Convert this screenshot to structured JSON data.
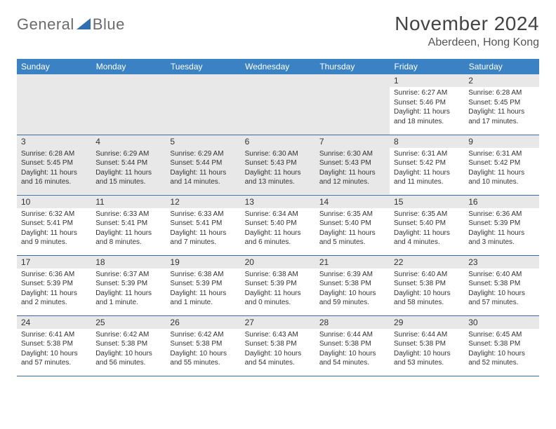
{
  "logo": {
    "part1": "General",
    "part2": "Blue",
    "primary_color": "#2f6fb0",
    "text_color": "#6b6b6b"
  },
  "title": "November 2024",
  "location": "Aberdeen, Hong Kong",
  "colors": {
    "header_bg": "#3b82c4",
    "header_text": "#ffffff",
    "daynum_bg": "#e8e8e8",
    "body_text": "#333333",
    "row_border": "#3b6a9a"
  },
  "day_headers": [
    "Sunday",
    "Monday",
    "Tuesday",
    "Wednesday",
    "Thursday",
    "Friday",
    "Saturday"
  ],
  "weeks": [
    [
      null,
      null,
      null,
      null,
      null,
      {
        "n": "1",
        "sunrise": "Sunrise: 6:27 AM",
        "sunset": "Sunset: 5:46 PM",
        "day1": "Daylight: 11 hours",
        "day2": "and 18 minutes."
      },
      {
        "n": "2",
        "sunrise": "Sunrise: 6:28 AM",
        "sunset": "Sunset: 5:45 PM",
        "day1": "Daylight: 11 hours",
        "day2": "and 17 minutes."
      }
    ],
    [
      {
        "n": "3",
        "sunrise": "Sunrise: 6:28 AM",
        "sunset": "Sunset: 5:45 PM",
        "day1": "Daylight: 11 hours",
        "day2": "and 16 minutes."
      },
      {
        "n": "4",
        "sunrise": "Sunrise: 6:29 AM",
        "sunset": "Sunset: 5:44 PM",
        "day1": "Daylight: 11 hours",
        "day2": "and 15 minutes."
      },
      {
        "n": "5",
        "sunrise": "Sunrise: 6:29 AM",
        "sunset": "Sunset: 5:44 PM",
        "day1": "Daylight: 11 hours",
        "day2": "and 14 minutes."
      },
      {
        "n": "6",
        "sunrise": "Sunrise: 6:30 AM",
        "sunset": "Sunset: 5:43 PM",
        "day1": "Daylight: 11 hours",
        "day2": "and 13 minutes."
      },
      {
        "n": "7",
        "sunrise": "Sunrise: 6:30 AM",
        "sunset": "Sunset: 5:43 PM",
        "day1": "Daylight: 11 hours",
        "day2": "and 12 minutes."
      },
      {
        "n": "8",
        "sunrise": "Sunrise: 6:31 AM",
        "sunset": "Sunset: 5:42 PM",
        "day1": "Daylight: 11 hours",
        "day2": "and 11 minutes."
      },
      {
        "n": "9",
        "sunrise": "Sunrise: 6:31 AM",
        "sunset": "Sunset: 5:42 PM",
        "day1": "Daylight: 11 hours",
        "day2": "and 10 minutes."
      }
    ],
    [
      {
        "n": "10",
        "sunrise": "Sunrise: 6:32 AM",
        "sunset": "Sunset: 5:41 PM",
        "day1": "Daylight: 11 hours",
        "day2": "and 9 minutes."
      },
      {
        "n": "11",
        "sunrise": "Sunrise: 6:33 AM",
        "sunset": "Sunset: 5:41 PM",
        "day1": "Daylight: 11 hours",
        "day2": "and 8 minutes."
      },
      {
        "n": "12",
        "sunrise": "Sunrise: 6:33 AM",
        "sunset": "Sunset: 5:41 PM",
        "day1": "Daylight: 11 hours",
        "day2": "and 7 minutes."
      },
      {
        "n": "13",
        "sunrise": "Sunrise: 6:34 AM",
        "sunset": "Sunset: 5:40 PM",
        "day1": "Daylight: 11 hours",
        "day2": "and 6 minutes."
      },
      {
        "n": "14",
        "sunrise": "Sunrise: 6:35 AM",
        "sunset": "Sunset: 5:40 PM",
        "day1": "Daylight: 11 hours",
        "day2": "and 5 minutes."
      },
      {
        "n": "15",
        "sunrise": "Sunrise: 6:35 AM",
        "sunset": "Sunset: 5:40 PM",
        "day1": "Daylight: 11 hours",
        "day2": "and 4 minutes."
      },
      {
        "n": "16",
        "sunrise": "Sunrise: 6:36 AM",
        "sunset": "Sunset: 5:39 PM",
        "day1": "Daylight: 11 hours",
        "day2": "and 3 minutes."
      }
    ],
    [
      {
        "n": "17",
        "sunrise": "Sunrise: 6:36 AM",
        "sunset": "Sunset: 5:39 PM",
        "day1": "Daylight: 11 hours",
        "day2": "and 2 minutes."
      },
      {
        "n": "18",
        "sunrise": "Sunrise: 6:37 AM",
        "sunset": "Sunset: 5:39 PM",
        "day1": "Daylight: 11 hours",
        "day2": "and 1 minute."
      },
      {
        "n": "19",
        "sunrise": "Sunrise: 6:38 AM",
        "sunset": "Sunset: 5:39 PM",
        "day1": "Daylight: 11 hours",
        "day2": "and 1 minute."
      },
      {
        "n": "20",
        "sunrise": "Sunrise: 6:38 AM",
        "sunset": "Sunset: 5:39 PM",
        "day1": "Daylight: 11 hours",
        "day2": "and 0 minutes."
      },
      {
        "n": "21",
        "sunrise": "Sunrise: 6:39 AM",
        "sunset": "Sunset: 5:38 PM",
        "day1": "Daylight: 10 hours",
        "day2": "and 59 minutes."
      },
      {
        "n": "22",
        "sunrise": "Sunrise: 6:40 AM",
        "sunset": "Sunset: 5:38 PM",
        "day1": "Daylight: 10 hours",
        "day2": "and 58 minutes."
      },
      {
        "n": "23",
        "sunrise": "Sunrise: 6:40 AM",
        "sunset": "Sunset: 5:38 PM",
        "day1": "Daylight: 10 hours",
        "day2": "and 57 minutes."
      }
    ],
    [
      {
        "n": "24",
        "sunrise": "Sunrise: 6:41 AM",
        "sunset": "Sunset: 5:38 PM",
        "day1": "Daylight: 10 hours",
        "day2": "and 57 minutes."
      },
      {
        "n": "25",
        "sunrise": "Sunrise: 6:42 AM",
        "sunset": "Sunset: 5:38 PM",
        "day1": "Daylight: 10 hours",
        "day2": "and 56 minutes."
      },
      {
        "n": "26",
        "sunrise": "Sunrise: 6:42 AM",
        "sunset": "Sunset: 5:38 PM",
        "day1": "Daylight: 10 hours",
        "day2": "and 55 minutes."
      },
      {
        "n": "27",
        "sunrise": "Sunrise: 6:43 AM",
        "sunset": "Sunset: 5:38 PM",
        "day1": "Daylight: 10 hours",
        "day2": "and 54 minutes."
      },
      {
        "n": "28",
        "sunrise": "Sunrise: 6:44 AM",
        "sunset": "Sunset: 5:38 PM",
        "day1": "Daylight: 10 hours",
        "day2": "and 54 minutes."
      },
      {
        "n": "29",
        "sunrise": "Sunrise: 6:44 AM",
        "sunset": "Sunset: 5:38 PM",
        "day1": "Daylight: 10 hours",
        "day2": "and 53 minutes."
      },
      {
        "n": "30",
        "sunrise": "Sunrise: 6:45 AM",
        "sunset": "Sunset: 5:38 PM",
        "day1": "Daylight: 10 hours",
        "day2": "and 52 minutes."
      }
    ]
  ]
}
